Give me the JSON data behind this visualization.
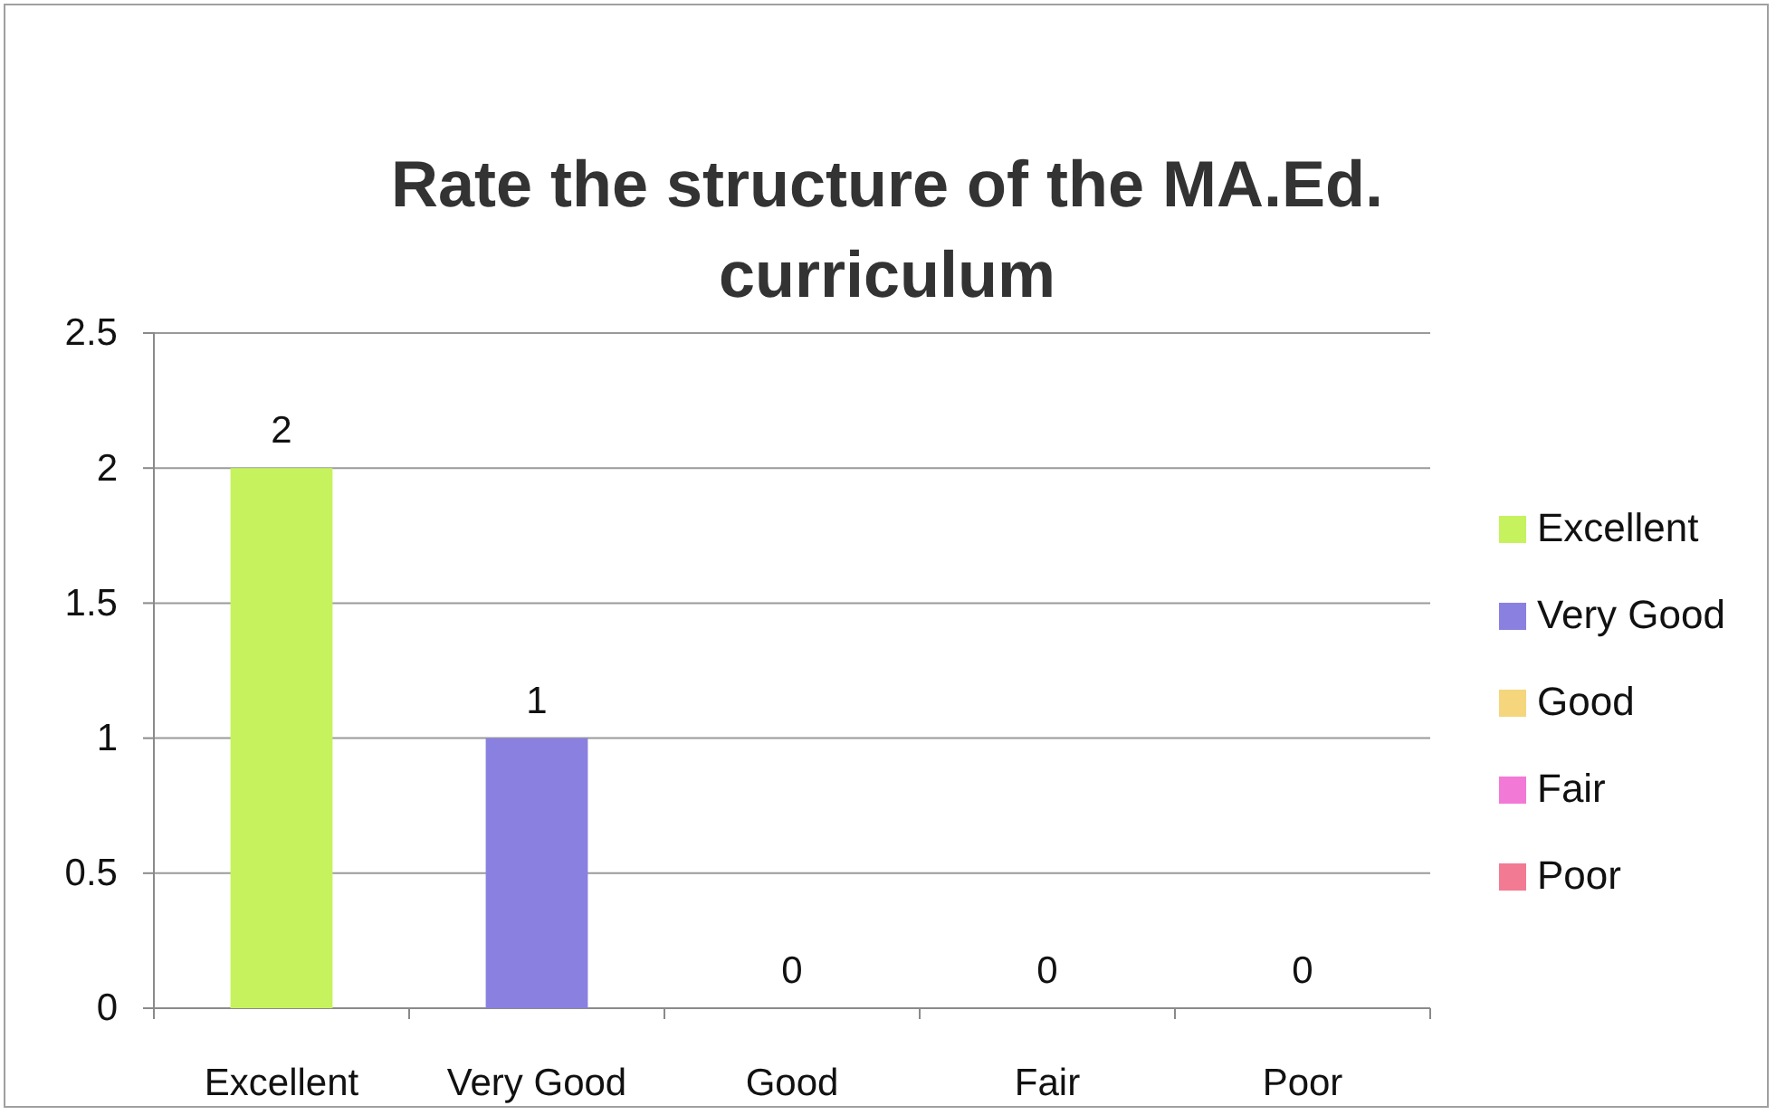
{
  "chart_data": {
    "type": "bar",
    "title": "Rate the structure of the MA.Ed. curriculum",
    "categories": [
      "Excellent",
      "Very Good",
      "Good",
      "Fair",
      "Poor"
    ],
    "series": [
      {
        "name": "Excellent",
        "color": "#c6f25e",
        "values": [
          2,
          null,
          null,
          null,
          null
        ]
      },
      {
        "name": "Very Good",
        "color": "#8a80e0",
        "values": [
          null,
          1,
          null,
          null,
          null
        ]
      },
      {
        "name": "Good",
        "color": "#f5d67c",
        "values": [
          null,
          null,
          0,
          null,
          null
        ]
      },
      {
        "name": "Fair",
        "color": "#f27ad6",
        "values": [
          null,
          null,
          null,
          0,
          null
        ]
      },
      {
        "name": "Poor",
        "color": "#f27a92",
        "values": [
          null,
          null,
          null,
          null,
          0
        ]
      }
    ],
    "ylim": [
      0,
      2.5
    ],
    "yticks": [
      0,
      0.5,
      1,
      1.5,
      2,
      2.5
    ],
    "grid": "y",
    "legend": "right",
    "data_labels": true
  }
}
